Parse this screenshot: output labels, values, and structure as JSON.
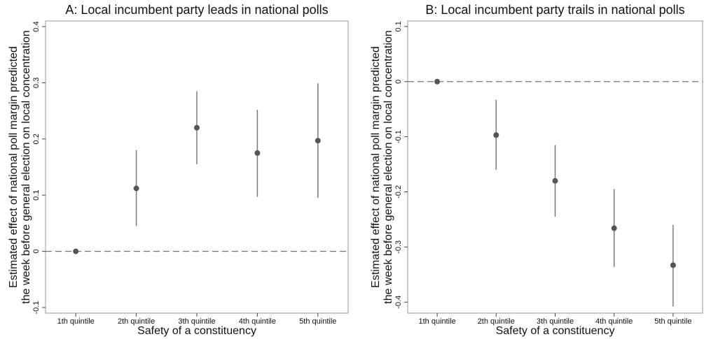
{
  "chart_data": [
    {
      "type": "errorbar",
      "title": "A: Local incumbent party leads in national polls",
      "xlabel": "Safety of a constituency",
      "ylabel": [
        "Estimated effect of national poll margin predicted",
        "the week before general election on local concentration"
      ],
      "categories": [
        "1th quintile",
        "2th quintile",
        "3th quintile",
        "4th quintile",
        "5th quintile"
      ],
      "values": [
        0,
        0.112,
        0.22,
        0.175,
        0.197
      ],
      "lower": [
        0,
        0.045,
        0.155,
        0.097,
        0.095
      ],
      "upper": [
        0,
        0.18,
        0.285,
        0.252,
        0.299
      ],
      "color": "#555555",
      "ci_color": "#7a7a7a",
      "ylim": [
        -0.11,
        0.41
      ],
      "yticks": [
        -0.1,
        0,
        0.1,
        0.2,
        0.3,
        0.4
      ],
      "refline": 0
    },
    {
      "type": "errorbar",
      "title": "B: Local incumbent party trails in national polls",
      "xlabel": "Safety of a constituency",
      "ylabel": [
        "Estimated effect of national poll margin predicted",
        "the week before general election on local concentration"
      ],
      "categories": [
        "1th quintile",
        "2th quintile",
        "3th quintile",
        "4th quintile",
        "5th quintile"
      ],
      "values": [
        0,
        -0.097,
        -0.18,
        -0.266,
        -0.333
      ],
      "lower": [
        0,
        -0.16,
        -0.245,
        -0.336,
        -0.408
      ],
      "upper": [
        0,
        -0.033,
        -0.115,
        -0.195,
        -0.26
      ],
      "color": "#555555",
      "ci_color": "#7a7a7a",
      "ylim": [
        -0.42,
        0.11
      ],
      "yticks": [
        -0.4,
        -0.3,
        -0.2,
        -0.1,
        0,
        0.1
      ],
      "refline": 0
    }
  ]
}
